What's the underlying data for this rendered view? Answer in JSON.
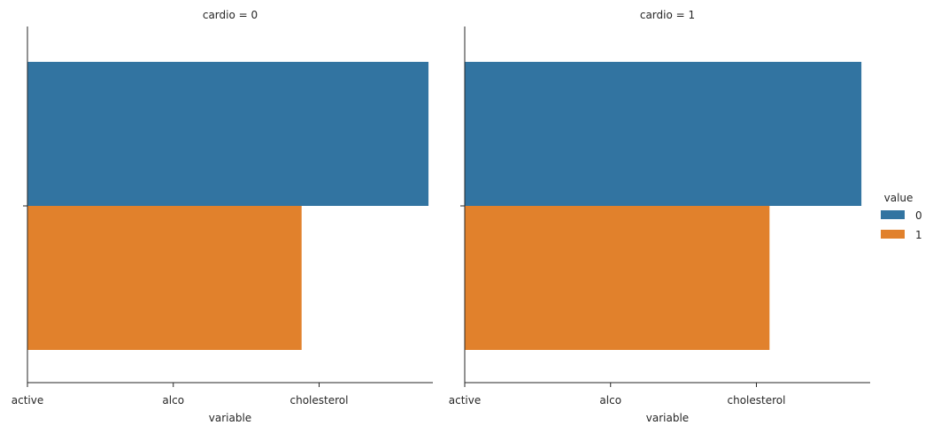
{
  "chart_data": {
    "type": "bar",
    "orientation": "horizontal",
    "grid": false,
    "x_categories": [
      "active",
      "alco",
      "cholesterol"
    ],
    "xlabel": "variable",
    "xlim": [
      0,
      2.78
    ],
    "legend": {
      "title": "value",
      "placement": "center-right",
      "entries": [
        {
          "label": "0",
          "color": "#3274a1"
        },
        {
          "label": "1",
          "color": "#e1812c"
        }
      ]
    },
    "panels": [
      {
        "title": "cardio = 0",
        "series": [
          {
            "name": "0",
            "value": 2.75,
            "color": "#3274a1"
          },
          {
            "name": "1",
            "value": 1.88,
            "color": "#e1812c"
          }
        ]
      },
      {
        "title": "cardio = 1",
        "series": [
          {
            "name": "0",
            "value": 2.72,
            "color": "#3274a1"
          },
          {
            "name": "1",
            "value": 2.09,
            "color": "#e1812c"
          }
        ]
      }
    ]
  }
}
